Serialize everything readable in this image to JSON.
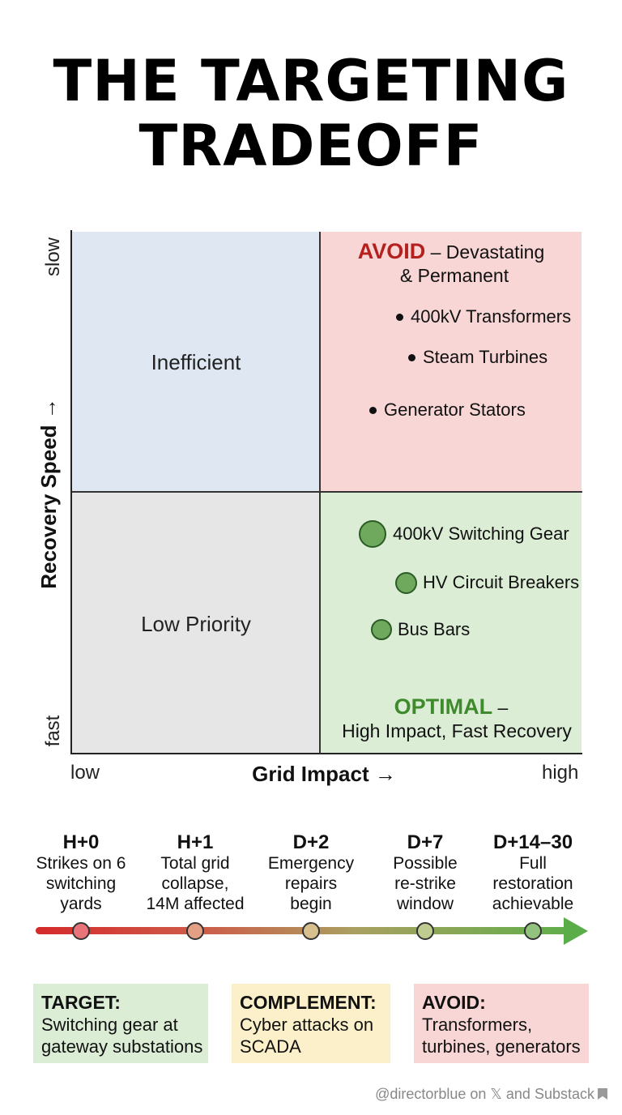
{
  "title": {
    "line1": "THE TARGETING",
    "line2": "TRADEOFF"
  },
  "chart": {
    "y_axis": {
      "label": "Recovery Speed →",
      "top": "slow",
      "bottom": "fast"
    },
    "x_axis": {
      "label": "Grid Impact →",
      "left": "low",
      "right": "high"
    },
    "quadrants": {
      "top_left": "Inefficient",
      "bottom_left": "Low Priority",
      "top_right": {
        "tag": "AVOID",
        "text1": " – Devastating",
        "text2": "& Permanent",
        "items": [
          "400kV Transformers",
          "Steam Turbines",
          "Generator Stators"
        ]
      },
      "bottom_right": {
        "tag": "OPTIMAL",
        "tag_suffix": " –",
        "text": "High Impact, Fast Recovery",
        "items": [
          "400kV Switching Gear",
          "HV Circuit Breakers",
          "Bus Bars"
        ]
      }
    }
  },
  "timeline": [
    {
      "time": "H+0",
      "l1": "Strikes on 6",
      "l2": "switching",
      "l3": "yards",
      "color": "#e8747a"
    },
    {
      "time": "H+1",
      "l1": "Total grid",
      "l2": "collapse,",
      "l3": "14M affected",
      "color": "#e3a085"
    },
    {
      "time": "D+2",
      "l1": "Emergency",
      "l2": "repairs",
      "l3": "begin",
      "color": "#d8c08e"
    },
    {
      "time": "D+7",
      "l1": "Possible",
      "l2": "re-strike",
      "l3": "window",
      "color": "#bfcc8f"
    },
    {
      "time": "D+14–30",
      "l1": "Full",
      "l2": "restoration",
      "l3": "achievable",
      "color": "#93c27f"
    }
  ],
  "boxes": [
    {
      "head": "TARGET:",
      "l1": "Switching gear at",
      "l2": "gateway substations",
      "color": "#dcedd6"
    },
    {
      "head": "COMPLEMENT:",
      "l1": "Cyber attacks on",
      "l2": "SCADA",
      "color": "#fbf0c9"
    },
    {
      "head": "AVOID:",
      "l1": "Transformers,",
      "l2": "turbines, generators",
      "color": "#f7d6d5"
    }
  ],
  "footer": "@directorblue on 𝕏 and Substack",
  "colors": {
    "avoid": "#b3201e",
    "optimal": "#3f8a2c"
  }
}
